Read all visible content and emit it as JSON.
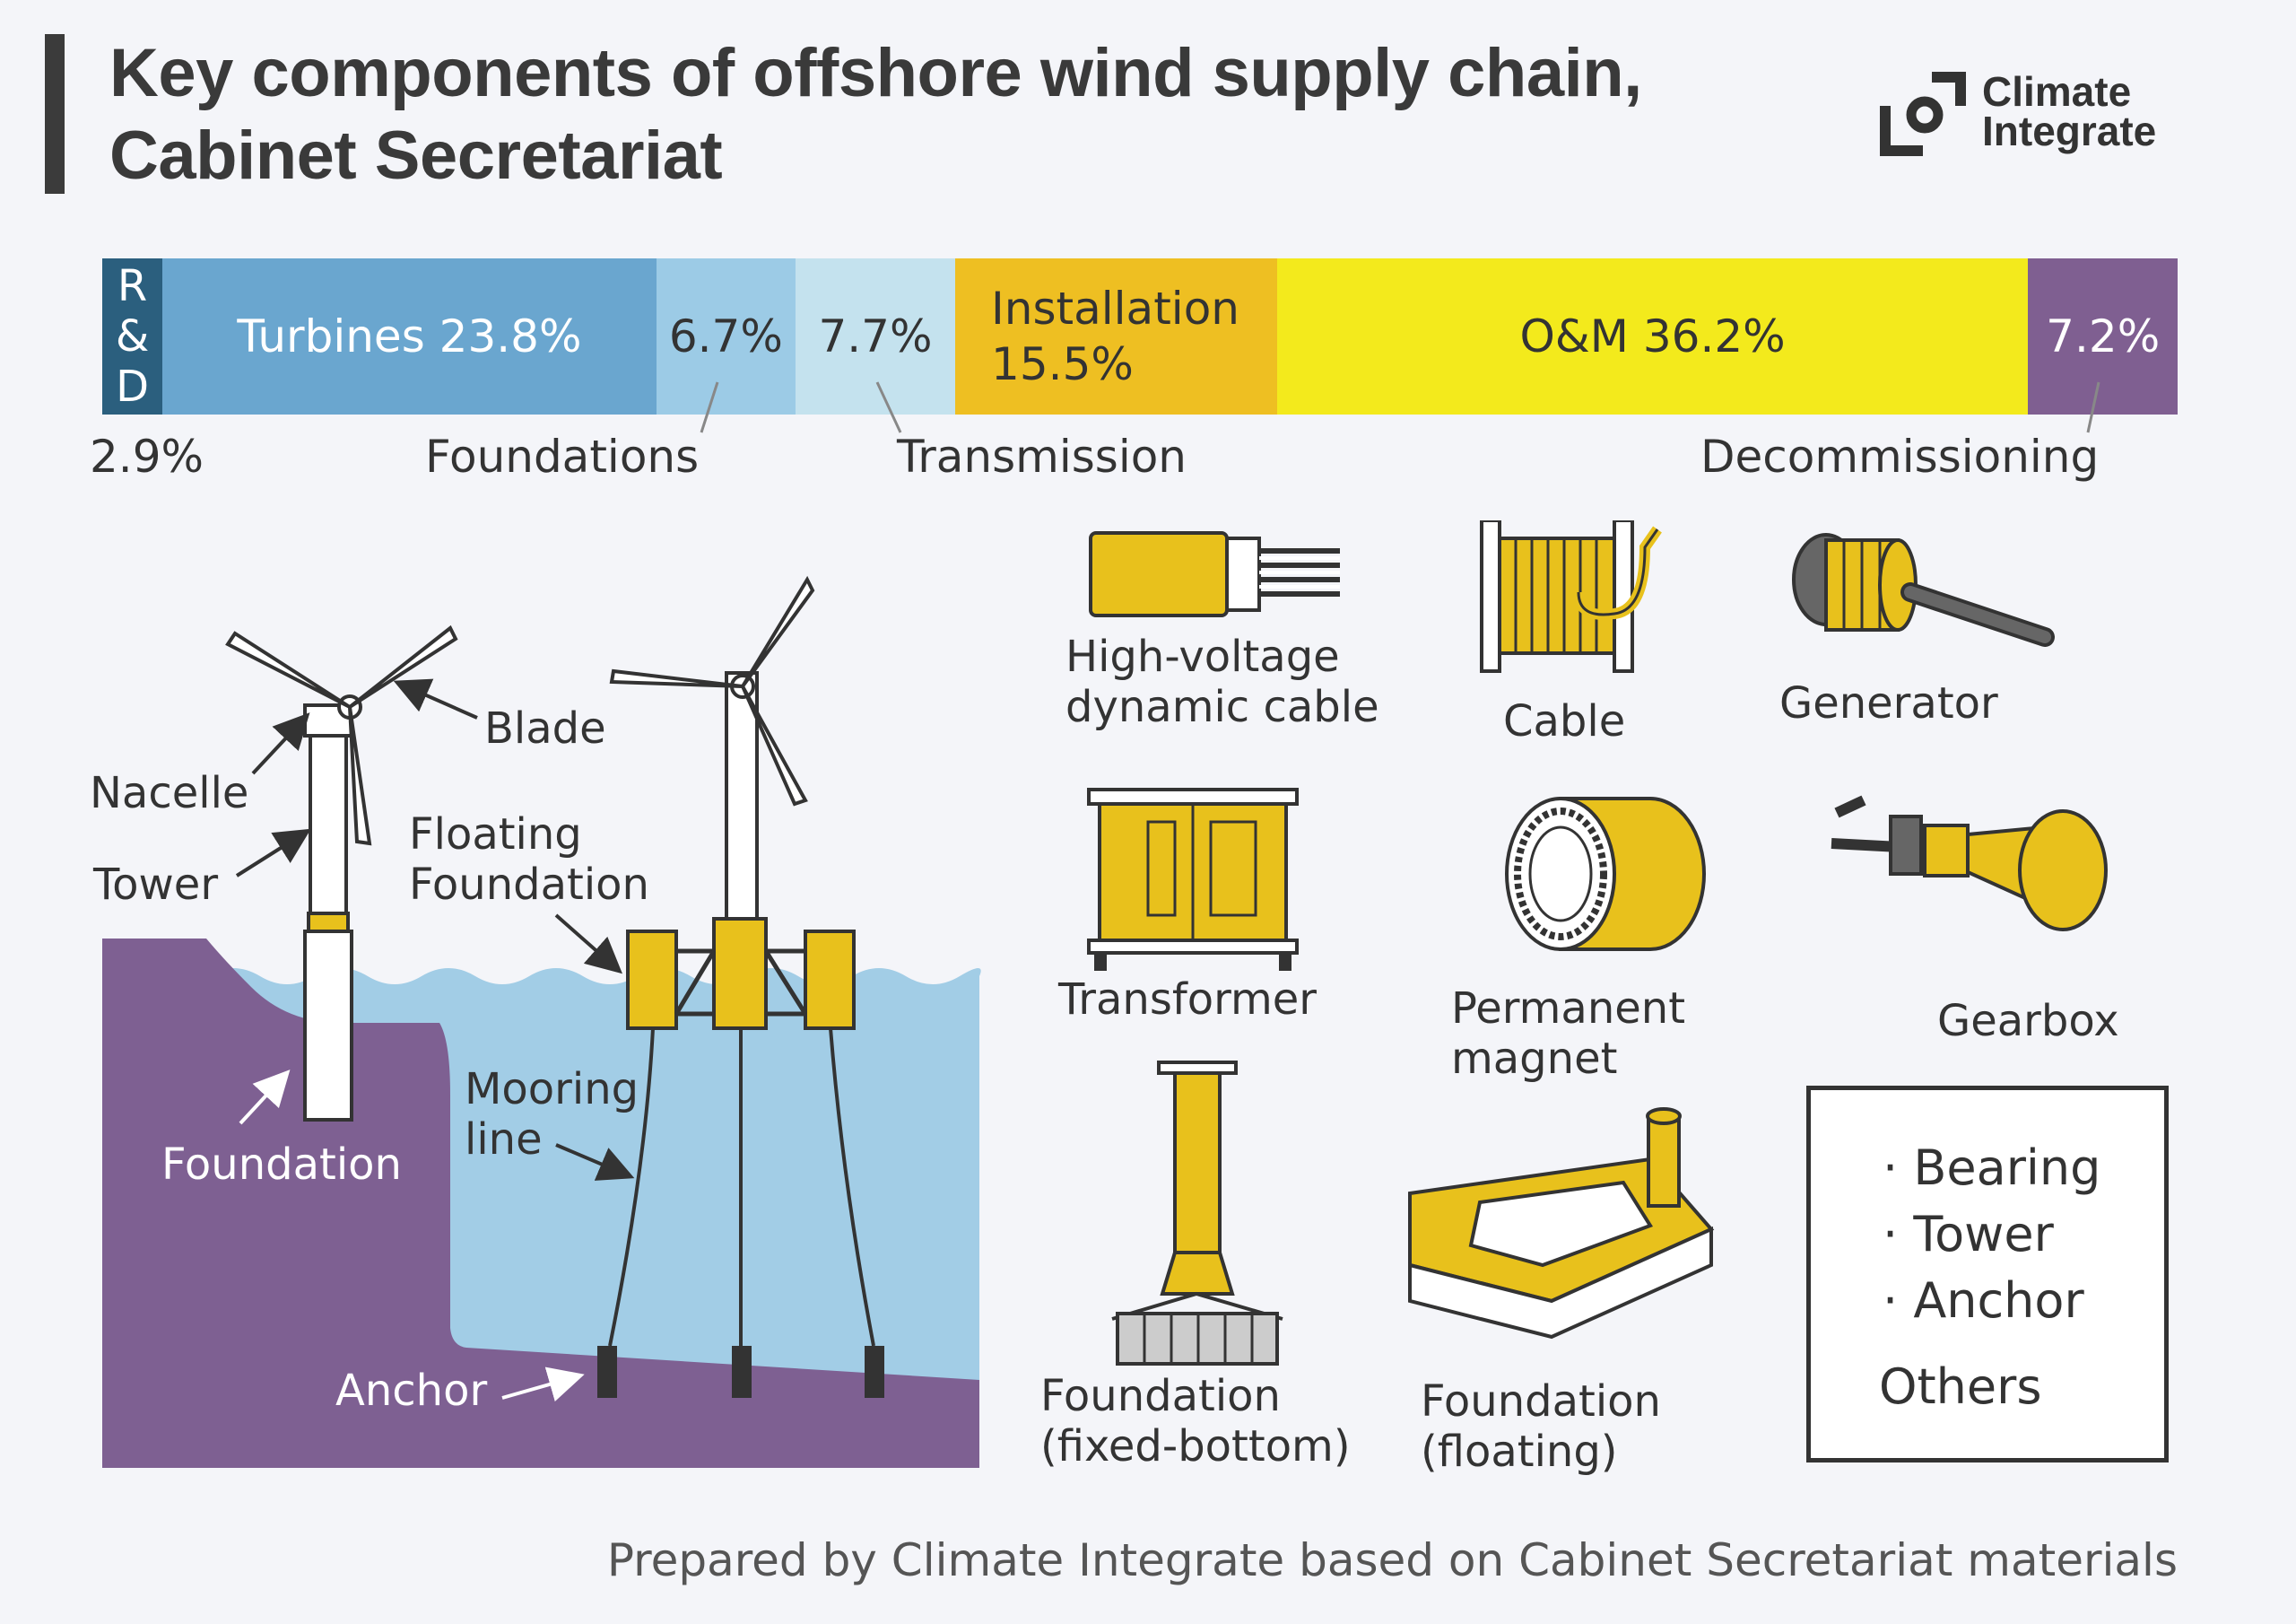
{
  "title": {
    "line1": "Key components of offshore wind supply chain,",
    "line2": "Cabinet Secretariat"
  },
  "logo": {
    "line1": "Climate",
    "line2": "Integrate",
    "icon": "climate-integrate-logo-icon"
  },
  "chart_data": {
    "type": "bar",
    "orientation": "horizontal-stacked",
    "categories": [
      "R&D",
      "Turbines",
      "Foundations",
      "Transmission",
      "Installation",
      "O&M",
      "Decommissioning"
    ],
    "values": [
      2.9,
      23.8,
      6.7,
      7.7,
      15.5,
      36.2,
      7.2
    ],
    "unit": "%",
    "colors": [
      "#2b5f7e",
      "#6aa6cf",
      "#9ccbe6",
      "#c4e2ee",
      "#eebf22",
      "#f3ea1c",
      "#7f5f91"
    ],
    "segment_labels": {
      "rnd": [
        "R",
        "&",
        "D"
      ],
      "turbines": "Turbines 23.8%",
      "foundations": "6.7%",
      "transmission": "7.7%",
      "installation_l1": "Installation",
      "installation_l2": "15.5%",
      "om": "O&M 36.2%",
      "decommissioning": "7.2%"
    },
    "below_labels": {
      "rnd": "2.9%",
      "foundations": "Foundations",
      "transmission": "Transmission",
      "decommissioning": "Decommissioning"
    }
  },
  "diagram_labels": {
    "blade": "Blade",
    "nacelle": "Nacelle",
    "tower": "Tower",
    "floating_foundation_l1": "Floating",
    "floating_foundation_l2": "Foundation",
    "foundation": "Foundation",
    "mooring_l1": "Mooring",
    "mooring_l2": "line",
    "anchor": "Anchor"
  },
  "components": {
    "hv_cable_l1": "High-voltage",
    "hv_cable_l2": "dynamic cable",
    "cable": "Cable",
    "generator": "Generator",
    "transformer": "Transformer",
    "magnet_l1": "Permanent",
    "magnet_l2": "magnet",
    "gearbox": "Gearbox",
    "fixed_l1": "Foundation",
    "fixed_l2": "(fixed-bottom)",
    "floating_l1": "Foundation",
    "floating_l2": "(floating)"
  },
  "others": {
    "items": [
      "· Bearing",
      "· Tower",
      "· Anchor"
    ],
    "label": "Others"
  },
  "footer": "Prepared by Climate Integrate based on Cabinet Secretariat materials"
}
